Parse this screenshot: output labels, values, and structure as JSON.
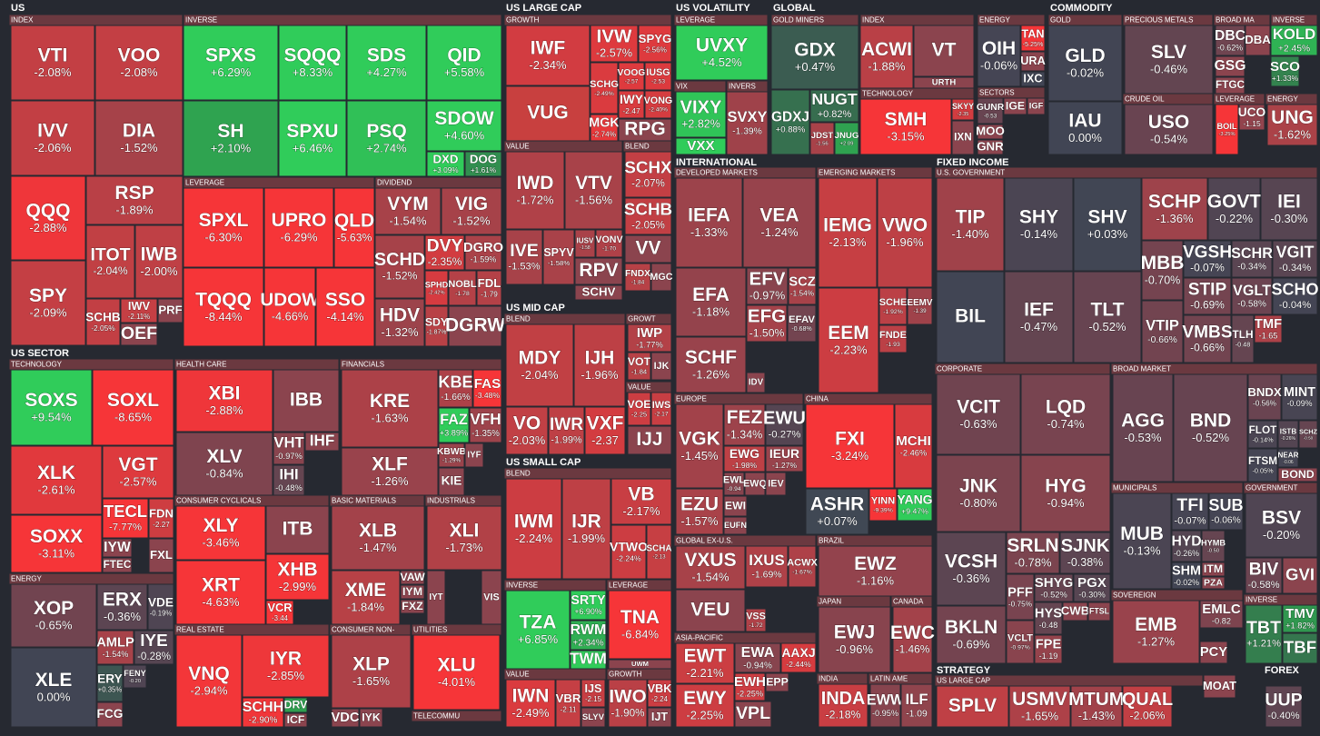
{
  "headers": [
    "US",
    "INDEX",
    "INVERSE",
    "LEVERAGE",
    "DIVIDEND",
    "US SECTOR",
    "TECHNOLOGY",
    "ENERGY",
    "HEALTH CARE",
    "FINANCIALS",
    "CONSUMER CYCLICALS",
    "BASIC MATERIALS",
    "INDUSTRIALS",
    "REAL ESTATE",
    "CONSUMER NON-",
    "UTILITIES",
    "TELECOMMU",
    "US LARGE CAP",
    "GROWTH",
    "VALUE",
    "BLEND",
    "US MID CAP",
    "BLEND",
    "GROWT",
    "VALUE",
    "US SMALL CAP",
    "BLEND",
    "INVERSE",
    "LEVERAGE",
    "VALUE",
    "GROWTH",
    "US VOLATILITY",
    "LEVERAGE",
    "VIX",
    "INVERS",
    "GLOBAL",
    "GOLD MINERS",
    "INDEX",
    "TECHNOLOGY",
    "ENERGY",
    "SECTORS",
    "COMMODITY",
    "GOLD",
    "PRECIOUS METALS",
    "CRUDE OIL",
    "BROAD MA",
    "INVERSE",
    "LEVERAGE",
    "ENERGY",
    "INTERNATIONAL",
    "DEVELOPED MARKETS",
    "EMERGING MARKETS",
    "EUROPE",
    "CHINA",
    "GLOBAL EX-U.S.",
    "BRAZIL",
    "JAPAN",
    "CANADA",
    "ASIA-PACIFIC",
    "INDIA",
    "LATIN AME",
    "FIXED INCOME",
    "U.S. GOVERNMENT",
    "CORPORATE",
    "BROAD MARKET",
    "MUNICIPALS",
    "GOVERNMENT",
    "SOVEREIGN",
    "INVERSE",
    "STRATEGY",
    "US LARGE CAP",
    "FOREX"
  ],
  "tiles": [
    {
      "ticker": "VTI",
      "change": "-2.08%"
    },
    {
      "ticker": "VOO",
      "change": "-2.08%"
    },
    {
      "ticker": "IVV",
      "change": "-2.06%"
    },
    {
      "ticker": "DIA",
      "change": "-1.52%"
    },
    {
      "ticker": "QQQ",
      "change": "-2.88%"
    },
    {
      "ticker": "RSP",
      "change": "-1.89%"
    },
    {
      "ticker": "SPY",
      "change": "-2.09%"
    },
    {
      "ticker": "ITOT",
      "change": "-2.04%"
    },
    {
      "ticker": "IWB",
      "change": "-2.00%"
    },
    {
      "ticker": "SCHB",
      "change": "-2.05%"
    },
    {
      "ticker": "IWV",
      "change": "-2.11%"
    },
    {
      "ticker": "PRF"
    },
    {
      "ticker": "OEF"
    },
    {
      "ticker": "SPXS",
      "change": "+6.29%"
    },
    {
      "ticker": "SQQQ",
      "change": "+8.33%"
    },
    {
      "ticker": "SDS",
      "change": "+4.27%"
    },
    {
      "ticker": "QID",
      "change": "+5.58%"
    },
    {
      "ticker": "SH",
      "change": "+2.10%"
    },
    {
      "ticker": "SPXU",
      "change": "+6.46%"
    },
    {
      "ticker": "PSQ",
      "change": "+2.74%"
    },
    {
      "ticker": "SDOW",
      "change": "+4.60%"
    },
    {
      "ticker": "DXD",
      "change": "+3.09%"
    },
    {
      "ticker": "DOG",
      "change": "+1.61%"
    },
    {
      "ticker": "SPXL",
      "change": "-6.30%"
    },
    {
      "ticker": "UPRO",
      "change": "-6.29%"
    },
    {
      "ticker": "QLD",
      "change": "-5.63%"
    },
    {
      "ticker": "TQQQ",
      "change": "-8.44%"
    },
    {
      "ticker": "UDOW",
      "change": "-4.66%"
    },
    {
      "ticker": "SSO",
      "change": "-4.14%"
    },
    {
      "ticker": "VYM",
      "change": "-1.54%"
    },
    {
      "ticker": "VIG",
      "change": "-1.52%"
    },
    {
      "ticker": "SCHD",
      "change": "-1.52%"
    },
    {
      "ticker": "DVY",
      "change": "-2.35%"
    },
    {
      "ticker": "DGRO",
      "change": "-1.59%"
    },
    {
      "ticker": "SPHD",
      "change": "-2.42%"
    },
    {
      "ticker": "NOBL",
      "change": "-1.78"
    },
    {
      "ticker": "FDL",
      "change": "-1.79"
    },
    {
      "ticker": "HDV",
      "change": "-1.32%"
    },
    {
      "ticker": "SDY",
      "change": "-1.87%"
    },
    {
      "ticker": "DGRW"
    },
    {
      "ticker": "SOXS",
      "change": "+9.54%"
    },
    {
      "ticker": "SOXL",
      "change": "-8.65%"
    },
    {
      "ticker": "XLK",
      "change": "-2.61%"
    },
    {
      "ticker": "VGT",
      "change": "-2.57%"
    },
    {
      "ticker": "SOXX",
      "change": "-3.11%"
    },
    {
      "ticker": "TECL",
      "change": "-7.77%"
    },
    {
      "ticker": "FDN",
      "change": "-2.27"
    },
    {
      "ticker": "IYW"
    },
    {
      "ticker": "FTEC"
    },
    {
      "ticker": "FXL"
    },
    {
      "ticker": "XOP",
      "change": "-0.65%"
    },
    {
      "ticker": "ERX",
      "change": "-0.36%"
    },
    {
      "ticker": "VDE",
      "change": "-0.19%"
    },
    {
      "ticker": "XLE",
      "change": "0.00%"
    },
    {
      "ticker": "AMLP",
      "change": "-1.54%"
    },
    {
      "ticker": "IYE",
      "change": "-0.28%"
    },
    {
      "ticker": "ERY",
      "change": "+0.35%"
    },
    {
      "ticker": "FENY",
      "change": "-0.20"
    },
    {
      "ticker": "FCG"
    },
    {
      "ticker": "XBI",
      "change": "-2.88%"
    },
    {
      "ticker": "IBB"
    },
    {
      "ticker": "XLV",
      "change": "-0.84%"
    },
    {
      "ticker": "VHT",
      "change": "-0.97%"
    },
    {
      "ticker": "IHF"
    },
    {
      "ticker": "IHI",
      "change": "-0.48%"
    },
    {
      "ticker": "KRE",
      "change": "-1.63%"
    },
    {
      "ticker": "KBE",
      "change": "-1.66%"
    },
    {
      "ticker": "FAS",
      "change": "-3.48%"
    },
    {
      "ticker": "FAZ",
      "change": "+3.89%"
    },
    {
      "ticker": "VFH",
      "change": "-1.35%"
    },
    {
      "ticker": "XLF",
      "change": "-1.26%"
    },
    {
      "ticker": "KBWB",
      "change": "-1.29%"
    },
    {
      "ticker": "IYF"
    },
    {
      "ticker": "KIE"
    },
    {
      "ticker": "XLY",
      "change": "-3.46%"
    },
    {
      "ticker": "ITB"
    },
    {
      "ticker": "XHB",
      "change": "-2.99%"
    },
    {
      "ticker": "XRT",
      "change": "-4.63%"
    },
    {
      "ticker": "VCR",
      "change": "-3.44"
    },
    {
      "ticker": "XLB",
      "change": "-1.47%"
    },
    {
      "ticker": "XME",
      "change": "-1.84%"
    },
    {
      "ticker": "VAW"
    },
    {
      "ticker": "IYM"
    },
    {
      "ticker": "FXZ"
    },
    {
      "ticker": "XLI",
      "change": "-1.73%"
    },
    {
      "ticker": "IYT"
    },
    {
      "ticker": "VIS"
    },
    {
      "ticker": "VNQ",
      "change": "-2.94%"
    },
    {
      "ticker": "IYR",
      "change": "-2.85%"
    },
    {
      "ticker": "SCHH",
      "change": "-2.90%"
    },
    {
      "ticker": "DRV",
      "color": "#2f9e4f"
    },
    {
      "ticker": "ICF"
    },
    {
      "ticker": "XLP",
      "change": "-1.65%"
    },
    {
      "ticker": "VDC"
    },
    {
      "ticker": "IYK"
    },
    {
      "ticker": "XLU",
      "change": "-4.01%"
    },
    {
      "ticker": "IWF",
      "change": "-2.34%"
    },
    {
      "ticker": "VUG",
      "color": "#c8403f"
    },
    {
      "ticker": "IVW",
      "change": "-2.57%"
    },
    {
      "ticker": "SPYG",
      "change": "-2.56%"
    },
    {
      "ticker": "SCHG",
      "change": "-2.49%"
    },
    {
      "ticker": "VOOG",
      "change": "-2.57"
    },
    {
      "ticker": "IUSG",
      "change": "-2.53"
    },
    {
      "ticker": "MGK",
      "change": "-2.74%"
    },
    {
      "ticker": "IWY",
      "change": "-2.47"
    },
    {
      "ticker": "VONG",
      "change": "-2.40%"
    },
    {
      "ticker": "RPG"
    },
    {
      "ticker": "IWD",
      "change": "-1.72%"
    },
    {
      "ticker": "VTV",
      "change": "-1.56%"
    },
    {
      "ticker": "IVE",
      "change": "-1.53%"
    },
    {
      "ticker": "SPYV",
      "change": "-1.58%"
    },
    {
      "ticker": "IUSV",
      "change": "-1.58"
    },
    {
      "ticker": "VONV",
      "change": "-1.70"
    },
    {
      "ticker": "RPV"
    },
    {
      "ticker": "SCHV"
    },
    {
      "ticker": "SCHX",
      "change": "-2.07%"
    },
    {
      "ticker": "SCHB",
      "change": "-2.05%"
    },
    {
      "ticker": "VV"
    },
    {
      "ticker": "FNDX",
      "change": "-1.84"
    },
    {
      "ticker": "MGC"
    },
    {
      "ticker": "MDY",
      "change": "-2.04%"
    },
    {
      "ticker": "IJH",
      "change": "-1.96%"
    },
    {
      "ticker": "VO",
      "change": "-2.03%"
    },
    {
      "ticker": "IWR",
      "change": "-1.99%"
    },
    {
      "ticker": "VXF",
      "change": "-2.37"
    },
    {
      "ticker": "IWP",
      "change": "-1.77%"
    },
    {
      "ticker": "VOT",
      "change": "-1.84"
    },
    {
      "ticker": "IJK"
    },
    {
      "ticker": "VOE",
      "change": "-2.25"
    },
    {
      "ticker": "IWS",
      "change": "-2.17"
    },
    {
      "ticker": "IJJ"
    },
    {
      "ticker": "IWM",
      "change": "-2.24%"
    },
    {
      "ticker": "IJR",
      "change": "-1.99%"
    },
    {
      "ticker": "VB",
      "change": "-2.17%"
    },
    {
      "ticker": "VTWO",
      "change": "-2.24%"
    },
    {
      "ticker": "SCHA",
      "change": "-2.13"
    },
    {
      "ticker": "TZA",
      "change": "+6.85%"
    },
    {
      "ticker": "SRTY",
      "change": "+6.90%"
    },
    {
      "ticker": "RWM",
      "change": "+2.34%"
    },
    {
      "ticker": "TWM",
      "color": "#30cc5a"
    },
    {
      "ticker": "TNA",
      "change": "-6.84%"
    },
    {
      "ticker": "UWM"
    },
    {
      "ticker": "IWN",
      "change": "-2.49%"
    },
    {
      "ticker": "VBR",
      "change": "-2.11"
    },
    {
      "ticker": "IJS",
      "change": "-2.15"
    },
    {
      "ticker": "SLYV"
    },
    {
      "ticker": "IWO",
      "change": "-1.90%"
    },
    {
      "ticker": "VBK",
      "change": "-2.24"
    },
    {
      "ticker": "IJT"
    },
    {
      "ticker": "UVXY",
      "change": "+4.52%"
    },
    {
      "ticker": "VIXY",
      "change": "+2.82%"
    },
    {
      "ticker": "VXX",
      "color": "#30cc5a"
    },
    {
      "ticker": "SVXY",
      "change": "-1.39%"
    },
    {
      "ticker": "GDX",
      "change": "+0.47%"
    },
    {
      "ticker": "GDXJ",
      "change": "+0.88%"
    },
    {
      "ticker": "NUGT",
      "change": "+0.82%"
    },
    {
      "ticker": "JDST",
      "change": "-1.56"
    },
    {
      "ticker": "JNUG",
      "change": "+2.09"
    },
    {
      "ticker": "ACWI",
      "change": "-1.88%"
    },
    {
      "ticker": "VT"
    },
    {
      "ticker": "URTH"
    },
    {
      "ticker": "SMH",
      "change": "-3.15%"
    },
    {
      "ticker": "SKYY",
      "change": "-2.35"
    },
    {
      "ticker": "IXN"
    },
    {
      "ticker": "OIH",
      "change": "-0.06%"
    },
    {
      "ticker": "TAN",
      "change": "-5.25%"
    },
    {
      "ticker": "URA"
    },
    {
      "ticker": "IXC",
      "color": "#414554"
    },
    {
      "ticker": "GUNR",
      "change": "-0.53"
    },
    {
      "ticker": "IGE"
    },
    {
      "ticker": "IGF"
    },
    {
      "ticker": "MOO"
    },
    {
      "ticker": "GNR"
    },
    {
      "ticker": "GLD",
      "change": "-0.02%"
    },
    {
      "ticker": "IAU",
      "change": "0.00%"
    },
    {
      "ticker": "SLV",
      "change": "-0.46%"
    },
    {
      "ticker": "USO",
      "change": "-0.54%"
    },
    {
      "ticker": "DBC",
      "change": "-0.62%"
    },
    {
      "ticker": "DBA"
    },
    {
      "ticker": "GSG"
    },
    {
      "ticker": "FTGC"
    },
    {
      "ticker": "KOLD",
      "change": "+2.45%"
    },
    {
      "ticker": "SCO",
      "change": "+1.33%"
    },
    {
      "ticker": "BOIL",
      "change": "-3.25%"
    },
    {
      "ticker": "UCO",
      "change": "-1.15"
    },
    {
      "ticker": "UNG",
      "change": "-1.62%"
    },
    {
      "ticker": "IEFA",
      "change": "-1.33%"
    },
    {
      "ticker": "VEA",
      "change": "-1.24%"
    },
    {
      "ticker": "EFA",
      "change": "-1.18%"
    },
    {
      "ticker": "EFV",
      "change": "-0.97%"
    },
    {
      "ticker": "SCZ",
      "change": "-1.54%"
    },
    {
      "ticker": "EFG",
      "change": "-1.50%"
    },
    {
      "ticker": "EFAV",
      "change": "-0.68%"
    },
    {
      "ticker": "SCHF",
      "change": "-1.26%"
    },
    {
      "ticker": "IDV"
    },
    {
      "ticker": "IEMG",
      "change": "-2.13%"
    },
    {
      "ticker": "VWO",
      "change": "-1.96%"
    },
    {
      "ticker": "EEM",
      "change": "-2.23%"
    },
    {
      "ticker": "SCHE",
      "change": "-1.92%"
    },
    {
      "ticker": "EEMV",
      "change": "-1.39"
    },
    {
      "ticker": "FNDE",
      "change": "-1.93"
    },
    {
      "ticker": "VGK",
      "change": "-1.45%"
    },
    {
      "ticker": "FEZ",
      "change": "-1.34%"
    },
    {
      "ticker": "EWU",
      "change": "-0.27%"
    },
    {
      "ticker": "EWG",
      "change": "-1.98%"
    },
    {
      "ticker": "IEUR",
      "change": "-1.27%"
    },
    {
      "ticker": "EWL",
      "change": "-0.94"
    },
    {
      "ticker": "EWQ"
    },
    {
      "ticker": "IEV"
    },
    {
      "ticker": "EZU",
      "change": "-1.57%"
    },
    {
      "ticker": "EWI"
    },
    {
      "ticker": "EUFN"
    },
    {
      "ticker": "FXI",
      "change": "-3.24%"
    },
    {
      "ticker": "MCHI",
      "change": "-2.46%"
    },
    {
      "ticker": "ASHR",
      "change": "+0.07%"
    },
    {
      "ticker": "YINN",
      "change": "-9.39%"
    },
    {
      "ticker": "YANG",
      "change": "+9.47%"
    },
    {
      "ticker": "VXUS",
      "change": "-1.54%"
    },
    {
      "ticker": "IXUS",
      "change": "-1.69%"
    },
    {
      "ticker": "ACWX",
      "change": "-1.67%"
    },
    {
      "ticker": "VEU"
    },
    {
      "ticker": "VSS",
      "change": "-1.72"
    },
    {
      "ticker": "EWZ",
      "change": "-1.16%"
    },
    {
      "ticker": "EWJ",
      "change": "-0.96%"
    },
    {
      "ticker": "EWC",
      "change": "-1.46%"
    },
    {
      "ticker": "EWT",
      "change": "-2.21%"
    },
    {
      "ticker": "EWA",
      "change": "-0.94%"
    },
    {
      "ticker": "AAXJ",
      "change": "-2.44%"
    },
    {
      "ticker": "EWY",
      "change": "-2.25%"
    },
    {
      "ticker": "EWH",
      "change": "-2.25%"
    },
    {
      "ticker": "EPP"
    },
    {
      "ticker": "VPL"
    },
    {
      "ticker": "INDA",
      "change": "-2.18%"
    },
    {
      "ticker": "EWW",
      "change": "-0.95%"
    },
    {
      "ticker": "ILF",
      "change": "-1.09"
    },
    {
      "ticker": "TIP",
      "change": "-1.40%"
    },
    {
      "ticker": "SHY",
      "change": "-0.14%"
    },
    {
      "ticker": "SHV",
      "change": "+0.03%"
    },
    {
      "ticker": "BIL",
      "color": "#414554"
    },
    {
      "ticker": "IEF",
      "change": "-0.47%"
    },
    {
      "ticker": "TLT",
      "change": "-0.52%"
    },
    {
      "ticker": "SCHP",
      "change": "-1.36%"
    },
    {
      "ticker": "GOVT",
      "change": "-0.22%"
    },
    {
      "ticker": "IEI",
      "change": "-0.30%"
    },
    {
      "ticker": "MBB",
      "change": "-0.70%"
    },
    {
      "ticker": "VGSH",
      "change": "-0.07%"
    },
    {
      "ticker": "SCHR",
      "change": "-0.34%"
    },
    {
      "ticker": "VGIT",
      "change": "-0.34%"
    },
    {
      "ticker": "STIP",
      "change": "-0.69%"
    },
    {
      "ticker": "VGLT",
      "change": "-0.58%"
    },
    {
      "ticker": "SCHO",
      "change": "-0.04%"
    },
    {
      "ticker": "VTIP",
      "change": "-0.66%"
    },
    {
      "ticker": "VMBS",
      "change": "-0.66%"
    },
    {
      "ticker": "TLH",
      "change": "-0.48"
    },
    {
      "ticker": "TMF",
      "change": "-1.65"
    },
    {
      "ticker": "VCIT",
      "change": "-0.63%"
    },
    {
      "ticker": "LQD",
      "change": "-0.74%"
    },
    {
      "ticker": "JNK",
      "change": "-0.80%"
    },
    {
      "ticker": "HYG",
      "change": "-0.94%"
    },
    {
      "ticker": "VCSH",
      "change": "-0.36%"
    },
    {
      "ticker": "BKLN",
      "change": "-0.69%"
    },
    {
      "ticker": "SRLN",
      "change": "-0.78%"
    },
    {
      "ticker": "SJNK",
      "change": "-0.38%"
    },
    {
      "ticker": "PFF",
      "change": "-0.75%"
    },
    {
      "ticker": "SHYG",
      "change": "-0.52%"
    },
    {
      "ticker": "PGX",
      "change": "-0.30%"
    },
    {
      "ticker": "HYS",
      "change": "-0.48"
    },
    {
      "ticker": "CWB"
    },
    {
      "ticker": "FTSL"
    },
    {
      "ticker": "VCLT",
      "change": "-0.97%"
    },
    {
      "ticker": "FPE",
      "change": "-1.19"
    },
    {
      "ticker": "AGG",
      "change": "-0.53%"
    },
    {
      "ticker": "BND",
      "change": "-0.52%"
    },
    {
      "ticker": "BNDX",
      "change": "-0.56%"
    },
    {
      "ticker": "MINT",
      "change": "-0.09%"
    },
    {
      "ticker": "FLOT",
      "change": "-0.14%"
    },
    {
      "ticker": "ISTB",
      "change": "-0.26%"
    },
    {
      "ticker": "SCHZ",
      "change": "-0.50"
    },
    {
      "ticker": "FTSM",
      "change": "-0.05%"
    },
    {
      "ticker": "NEAR",
      "change": "-0.06"
    },
    {
      "ticker": "BOND"
    },
    {
      "ticker": "MUB",
      "change": "-0.13%"
    },
    {
      "ticker": "TFI",
      "change": "-0.07%"
    },
    {
      "ticker": "SUB",
      "change": "-0.06%"
    },
    {
      "ticker": "HYD",
      "change": "-0.26%"
    },
    {
      "ticker": "HYMB",
      "change": "-0.50"
    },
    {
      "ticker": "SHM",
      "change": "-0.02%"
    },
    {
      "ticker": "ITM"
    },
    {
      "ticker": "PZA"
    },
    {
      "ticker": "BSV",
      "change": "-0.20%"
    },
    {
      "ticker": "BIV",
      "change": "-0.58%"
    },
    {
      "ticker": "GVI"
    },
    {
      "ticker": "EMB",
      "change": "-1.27%"
    },
    {
      "ticker": "EMLC",
      "change": "-0.82"
    },
    {
      "ticker": "PCY"
    },
    {
      "ticker": "TBT",
      "change": "+1.21%"
    },
    {
      "ticker": "TMV",
      "change": "+1.82%"
    },
    {
      "ticker": "TBF",
      "color": "#35764e"
    },
    {
      "ticker": "SPLV",
      "color": "#bf4045"
    },
    {
      "ticker": "USMV",
      "change": "-1.65%"
    },
    {
      "ticker": "MTUM",
      "change": "-1.43%"
    },
    {
      "ticker": "QUAL",
      "change": "-2.06%"
    },
    {
      "ticker": "MOAT"
    },
    {
      "ticker": "UUP",
      "change": "-0.40%"
    }
  ]
}
